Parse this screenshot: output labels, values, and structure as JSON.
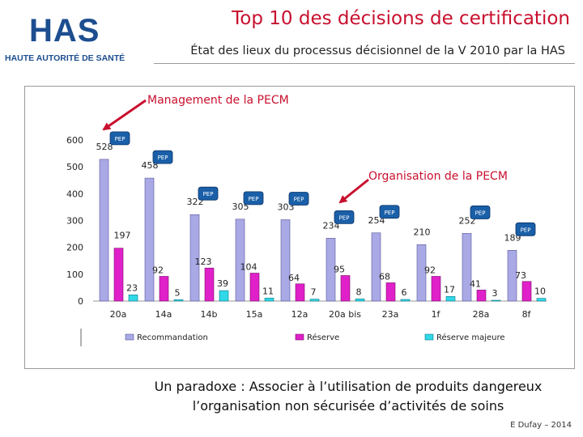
{
  "header": {
    "logo_mark": "HAS",
    "logo_sub": "HAUTE AUTORITÉ DE SANTÉ",
    "title": "Top 10 des décisions de certification",
    "subtitle": "État des lieux du processus décisionnel de la V 2010 par la HAS"
  },
  "annotations": {
    "management": "Management de la PECM",
    "organisation": "Organisation de la PECM",
    "pep_badge": "PEP"
  },
  "colors": {
    "title": "#c8102e",
    "recommandation": "#a9a9e6",
    "reserve": "#e020c8",
    "reserve_majeure": "#30d8e8",
    "annotation": "#c8102e",
    "badge": "#1a5fa8"
  },
  "chart_data": {
    "type": "bar",
    "categories": [
      "20a",
      "14a",
      "14b",
      "15a",
      "12a",
      "20a bis",
      "23a",
      "1f",
      "28a",
      "8f"
    ],
    "series": [
      {
        "name": "Recommandation",
        "values": [
          528,
          458,
          322,
          305,
          303,
          234,
          254,
          210,
          252,
          189
        ]
      },
      {
        "name": "Réserve",
        "values": [
          197,
          92,
          123,
          104,
          64,
          95,
          68,
          92,
          41,
          73
        ]
      },
      {
        "name": "Réserve majeure",
        "values": [
          23,
          5,
          39,
          11,
          7,
          8,
          6,
          17,
          3,
          10
        ]
      }
    ],
    "yticks": [
      0,
      100,
      200,
      300,
      400,
      500,
      600
    ],
    "ylim": [
      0,
      600
    ],
    "grid": false,
    "legend": "bottom",
    "pep_flags": [
      true,
      true,
      true,
      true,
      true,
      true,
      true,
      false,
      true,
      true
    ]
  },
  "footer": {
    "line1": "Un paradoxe : Associer à l’utilisation de produits dangereux",
    "line2": "l’organisation non sécurisée d’activités de soins",
    "credit": "E Dufay –  2014"
  }
}
